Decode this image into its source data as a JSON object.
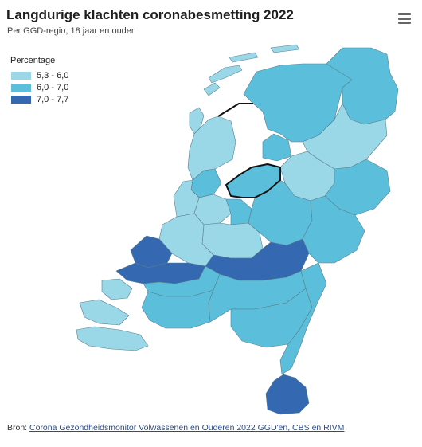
{
  "title": "Langdurige klachten coronabesmetting 2022",
  "subtitle": "Per GGD-regio, 18 jaar en ouder",
  "menu_icon": "hamburger-menu-icon",
  "legend": {
    "title": "Percentage",
    "items": [
      {
        "label": "5,3 - 6,0",
        "color": "#9ad8e8"
      },
      {
        "label": "6,0 - 7,0",
        "color": "#5bbfdb"
      },
      {
        "label": "7,0 - 7,7",
        "color": "#3468b0"
      }
    ]
  },
  "source": {
    "prefix": "Bron: ",
    "link_text": "Corona Gezondheidsmonitor Volwassenen en Ouderen 2022 GGD'en, CBS en RIVM"
  },
  "map": {
    "country": "Nederland",
    "bins": [
      "5,3 - 6,0",
      "6,0 - 7,0",
      "7,0 - 7,7"
    ]
  }
}
